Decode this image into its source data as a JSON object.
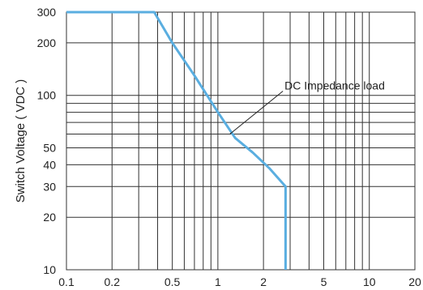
{
  "chart_data": {
    "type": "line",
    "title": "",
    "xlabel": "",
    "ylabel": "Switch Voltage ( VDC )",
    "x_scale": "log",
    "y_scale": "log",
    "xlim": [
      0.1,
      20
    ],
    "ylim": [
      10,
      300
    ],
    "x_ticks": [
      {
        "value": 0.1,
        "label": "0.1"
      },
      {
        "value": 0.2,
        "label": "0.2"
      },
      {
        "value": 0.5,
        "label": "0.5"
      },
      {
        "value": 1,
        "label": "1"
      },
      {
        "value": 2,
        "label": "2"
      },
      {
        "value": 5,
        "label": "5"
      },
      {
        "value": 10,
        "label": "10"
      },
      {
        "value": 20,
        "label": "20"
      }
    ],
    "y_ticks": [
      {
        "value": 10,
        "label": "10"
      },
      {
        "value": 20,
        "label": "20"
      },
      {
        "value": 30,
        "label": "30"
      },
      {
        "value": 40,
        "label": "40"
      },
      {
        "value": 50,
        "label": "50"
      },
      {
        "value": 100,
        "label": "100"
      },
      {
        "value": 200,
        "label": "200"
      },
      {
        "value": 300,
        "label": "300"
      }
    ],
    "x_gridlines": [
      0.2,
      0.3,
      0.4,
      0.5,
      0.6,
      0.7,
      0.8,
      0.9,
      1,
      2,
      3,
      4,
      5,
      6,
      7,
      8,
      9,
      10
    ],
    "y_gridlines": [
      20,
      30,
      40,
      50,
      60,
      70,
      80,
      90,
      100,
      200
    ],
    "grid": true,
    "series": [
      {
        "color": "#5aaee0",
        "x": [
          0.1,
          0.38,
          0.5,
          0.7,
          1,
          1.3,
          1.7,
          2.2,
          2.8,
          2.8
        ],
        "y": [
          300,
          300,
          200,
          130,
          80,
          57,
          47,
          38,
          30,
          10
        ]
      }
    ],
    "annotation": {
      "text": "DC Impedance load",
      "point": [
        1.2,
        60
      ],
      "text_at": [
        2,
        108
      ]
    }
  }
}
